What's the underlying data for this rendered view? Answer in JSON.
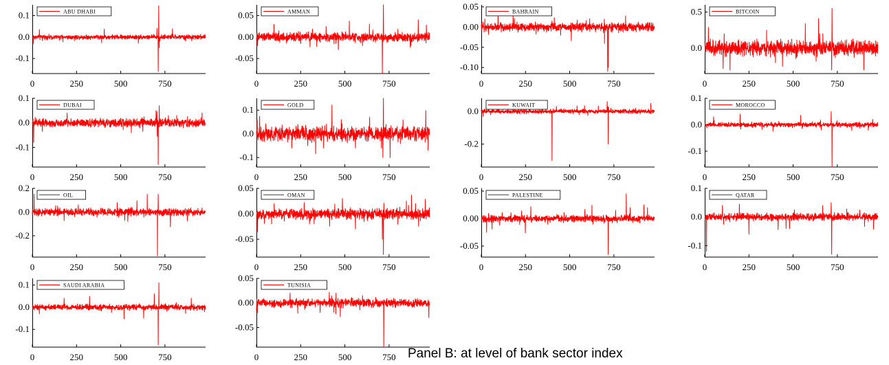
{
  "caption": "Panel B: at level of bank sector index",
  "series_color": "#ff0000",
  "chart_data": [
    {
      "type": "line",
      "legend": "ABU DHABI",
      "xticks": [
        0,
        250,
        500,
        750
      ],
      "yticks": [
        "0.1",
        "0.0",
        "-0.1"
      ],
      "yvals": [
        0.1,
        0.0,
        -0.1
      ],
      "ylim": [
        -0.17,
        0.15
      ],
      "xlim": [
        0,
        980
      ],
      "n": 980,
      "base_noise": 0.005,
      "spikes": [
        [
          712,
          -0.16
        ],
        [
          715,
          0.145
        ],
        [
          705,
          0.04
        ],
        [
          718,
          -0.05
        ],
        [
          40,
          0.035
        ],
        [
          5,
          -0.03
        ]
      ]
    },
    {
      "type": "line",
      "legend": "AMMAN",
      "xticks": [
        0,
        250,
        500,
        750
      ],
      "yticks": [
        "0.05",
        "0.00",
        "-0.05"
      ],
      "yvals": [
        0.05,
        0.0,
        -0.05
      ],
      "ylim": [
        -0.085,
        0.075
      ],
      "xlim": [
        0,
        980
      ],
      "n": 980,
      "base_noise": 0.005,
      "spikes": [
        [
          712,
          -0.085
        ],
        [
          718,
          0.075
        ],
        [
          525,
          0.037
        ],
        [
          915,
          0.04
        ],
        [
          5,
          -0.02
        ],
        [
          450,
          -0.015
        ],
        [
          600,
          -0.02
        ]
      ]
    },
    {
      "type": "line",
      "legend": "BAHRAIN",
      "xticks": [
        0,
        250,
        500,
        750
      ],
      "yticks": [
        "0.05",
        "0.00",
        "-0.05",
        "-0.10"
      ],
      "yvals": [
        0.05,
        0.0,
        -0.05,
        -0.1
      ],
      "ylim": [
        -0.115,
        0.055
      ],
      "xlim": [
        0,
        980
      ],
      "n": 980,
      "base_noise": 0.005,
      "spikes": [
        [
          715,
          -0.11
        ],
        [
          718,
          -0.1
        ],
        [
          95,
          0.035
        ],
        [
          180,
          0.03
        ],
        [
          20,
          0.02
        ],
        [
          400,
          0.015
        ]
      ]
    },
    {
      "type": "line",
      "legend": "BITCOIN",
      "xticks": [
        0,
        250,
        500,
        750
      ],
      "yticks": [
        "0.5",
        "0.0"
      ],
      "yvals": [
        0.5,
        0.0
      ],
      "ylim": [
        -0.35,
        0.6
      ],
      "xlim": [
        0,
        980
      ],
      "n": 980,
      "base_noise": 0.05,
      "spikes": [
        [
          720,
          0.55
        ],
        [
          718,
          -0.3
        ],
        [
          900,
          -0.3
        ],
        [
          110,
          0.2
        ],
        [
          350,
          0.25
        ],
        [
          440,
          -0.25
        ],
        [
          400,
          -0.2
        ],
        [
          650,
          0.2
        ]
      ]
    },
    {
      "type": "line",
      "legend": "DUBAI",
      "xticks": [
        0,
        250,
        500,
        750
      ],
      "yticks": [
        "0.1",
        "0.0",
        "-0.1"
      ],
      "yvals": [
        0.1,
        0.0,
        -0.1
      ],
      "ylim": [
        -0.18,
        0.1
      ],
      "xlim": [
        0,
        980
      ],
      "n": 980,
      "base_noise": 0.008,
      "spikes": [
        [
          712,
          -0.17
        ],
        [
          718,
          0.07
        ],
        [
          8,
          -0.08
        ],
        [
          700,
          0.05
        ],
        [
          560,
          -0.04
        ],
        [
          960,
          0.04
        ]
      ]
    },
    {
      "type": "line",
      "legend": "GOLD",
      "xticks": [
        0,
        250,
        500,
        750
      ],
      "yticks": [
        "0.1",
        "0.0",
        "-0.1"
      ],
      "yvals": [
        0.1,
        0.0,
        -0.1
      ],
      "ylim": [
        -0.14,
        0.15
      ],
      "xlim": [
        0,
        980
      ],
      "n": 980,
      "base_noise": 0.015,
      "spikes": [
        [
          718,
          0.15
        ],
        [
          715,
          -0.1
        ],
        [
          560,
          -0.06
        ],
        [
          200,
          -0.06
        ],
        [
          480,
          0.06
        ],
        [
          290,
          -0.05
        ],
        [
          640,
          0.07
        ],
        [
          380,
          -0.06
        ]
      ]
    },
    {
      "type": "line",
      "legend": "KUWAIT",
      "xticks": [
        0,
        250,
        500,
        750
      ],
      "yticks": [
        "0.0",
        "-0.2"
      ],
      "yvals": [
        0.0,
        -0.2
      ],
      "ylim": [
        -0.34,
        0.08
      ],
      "xlim": [
        0,
        980
      ],
      "n": 980,
      "base_noise": 0.006,
      "spikes": [
        [
          400,
          -0.3
        ],
        [
          718,
          -0.2
        ],
        [
          712,
          0.06
        ],
        [
          190,
          0.02
        ],
        [
          10,
          -0.03
        ]
      ]
    },
    {
      "type": "line",
      "legend": "MOROCCO",
      "xticks": [
        0,
        250,
        500,
        750
      ],
      "yticks": [
        "0.1",
        "0.0",
        "-0.1"
      ],
      "yvals": [
        0.1,
        0.0,
        -0.1
      ],
      "ylim": [
        -0.16,
        0.1
      ],
      "xlim": [
        0,
        980
      ],
      "n": 980,
      "base_noise": 0.004,
      "spikes": [
        [
          720,
          -0.16
        ],
        [
          715,
          0.05
        ],
        [
          50,
          0.03
        ],
        [
          200,
          0.04
        ],
        [
          950,
          0.02
        ]
      ]
    },
    {
      "type": "line",
      "legend": "OIL",
      "xticks": [
        0,
        250,
        500,
        750
      ],
      "yticks": [
        "0.2",
        "0.0",
        "-0.2"
      ],
      "yvals": [
        0.2,
        0.0,
        -0.2
      ],
      "ylim": [
        -0.38,
        0.2
      ],
      "xlim": [
        0,
        980
      ],
      "n": 980,
      "base_noise": 0.015,
      "spikes": [
        [
          708,
          -0.37
        ],
        [
          712,
          0.15
        ],
        [
          650,
          0.15
        ],
        [
          10,
          0.15
        ],
        [
          540,
          -0.08
        ],
        [
          480,
          0.08
        ]
      ]
    },
    {
      "type": "line",
      "legend": "OMAN",
      "xticks": [
        0,
        250,
        500,
        750
      ],
      "yticks": [
        "0.05",
        "0.00",
        "-0.05"
      ],
      "yvals": [
        0.05,
        0.0,
        -0.05
      ],
      "ylim": [
        -0.085,
        0.05
      ],
      "xlim": [
        0,
        980
      ],
      "n": 980,
      "base_noise": 0.005,
      "spikes": [
        [
          718,
          -0.08
        ],
        [
          712,
          -0.05
        ],
        [
          5,
          -0.035
        ],
        [
          560,
          -0.03
        ],
        [
          100,
          0.02
        ],
        [
          900,
          0.02
        ],
        [
          300,
          -0.02
        ]
      ]
    },
    {
      "type": "line",
      "legend": "PALESTINE",
      "xticks": [
        0,
        250,
        500,
        750
      ],
      "yticks": [
        "0.05",
        "0.00",
        "-0.05"
      ],
      "yvals": [
        0.05,
        0.0,
        -0.05
      ],
      "ylim": [
        -0.07,
        0.055
      ],
      "xlim": [
        0,
        980
      ],
      "n": 980,
      "base_noise": 0.003,
      "spikes": [
        [
          718,
          -0.065
        ],
        [
          820,
          0.045
        ],
        [
          30,
          -0.025
        ],
        [
          920,
          0.025
        ],
        [
          940,
          0.02
        ],
        [
          760,
          0.015
        ]
      ]
    },
    {
      "type": "line",
      "legend": "QATAR",
      "xticks": [
        0,
        250,
        500,
        750
      ],
      "yticks": [
        "0.1",
        "0.0",
        "-0.1"
      ],
      "yvals": [
        0.1,
        0.0,
        -0.1
      ],
      "ylim": [
        -0.14,
        0.1
      ],
      "xlim": [
        0,
        980
      ],
      "n": 980,
      "base_noise": 0.006,
      "spikes": [
        [
          718,
          -0.13
        ],
        [
          715,
          0.05
        ],
        [
          10,
          -0.12
        ],
        [
          250,
          -0.06
        ],
        [
          100,
          0.04
        ],
        [
          460,
          -0.04
        ],
        [
          480,
          -0.04
        ]
      ]
    },
    {
      "type": "line",
      "legend": "SAUDI ARABIA",
      "xticks": [
        0,
        250,
        500,
        750
      ],
      "yticks": [
        "0.1",
        "0.0",
        "-0.1"
      ],
      "yvals": [
        0.1,
        0.0,
        -0.1
      ],
      "ylim": [
        -0.18,
        0.13
      ],
      "xlim": [
        0,
        980
      ],
      "n": 980,
      "base_noise": 0.006,
      "spikes": [
        [
          712,
          -0.17
        ],
        [
          716,
          0.11
        ],
        [
          690,
          0.06
        ],
        [
          630,
          -0.05
        ],
        [
          180,
          0.04
        ],
        [
          40,
          -0.03
        ]
      ]
    },
    {
      "type": "line",
      "legend": "TUNISIA",
      "xticks": [
        0,
        250,
        500,
        750
      ],
      "yticks": [
        "0.05",
        "0.00",
        "-0.05"
      ],
      "yvals": [
        0.05,
        0.0,
        -0.05
      ],
      "ylim": [
        -0.09,
        0.05
      ],
      "xlim": [
        0,
        980
      ],
      "n": 980,
      "base_noise": 0.004,
      "spikes": [
        [
          720,
          -0.09
        ],
        [
          975,
          -0.03
        ],
        [
          450,
          0.02
        ],
        [
          5,
          -0.02
        ],
        [
          600,
          0.015
        ]
      ]
    }
  ]
}
